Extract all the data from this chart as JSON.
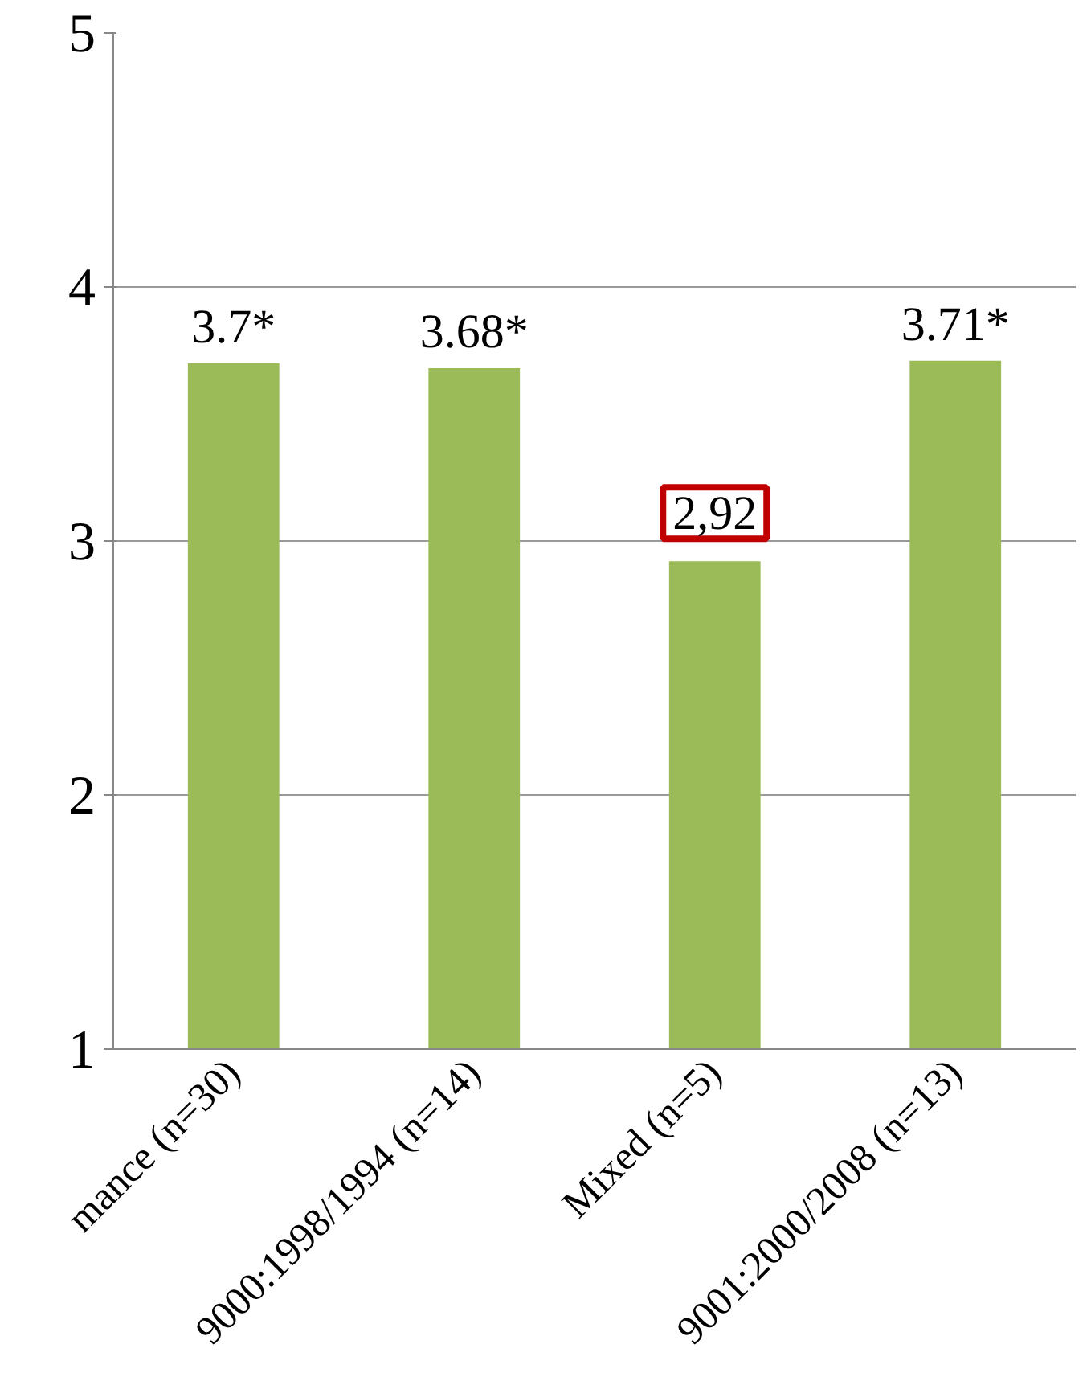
{
  "chart_data": {
    "type": "bar",
    "categories": [
      "mance (n=30)",
      "9000:1998/1994 (n=14)",
      "Mixed (n=5)",
      "9001:2000/2008 (n=13)"
    ],
    "values": [
      3.7,
      3.68,
      2.92,
      3.71
    ],
    "value_labels": [
      "3.7*",
      "3.68*",
      null,
      "3.71*"
    ],
    "color": "#9bbb59",
    "ylim": [
      1,
      5
    ],
    "yticks": [
      1,
      2,
      3,
      4,
      5
    ],
    "grid": "y",
    "annotations": [
      {
        "text": "2,92",
        "x": "Mixed (n=5)",
        "y": 2.92
      }
    ]
  }
}
